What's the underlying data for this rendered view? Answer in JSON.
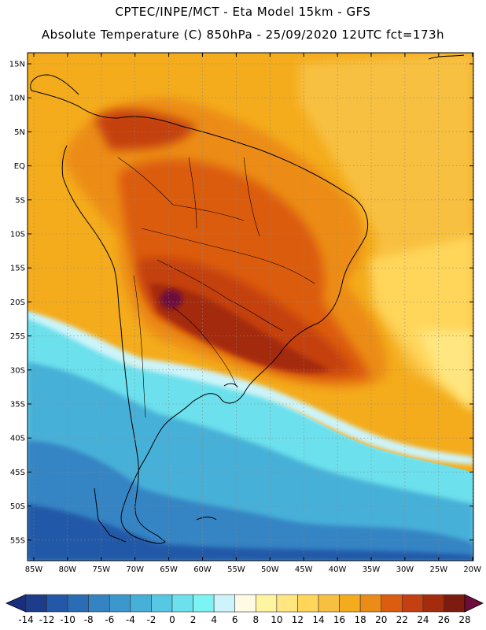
{
  "header": {
    "line1": "CPTEC/INPE/MCT -   Eta Model 15km - GFS",
    "line2": "Absolute Temperature (C) 850hPa - 25/09/2020 12UTC fct=173h"
  },
  "map": {
    "lat_labels": [
      "15N",
      "10N",
      "5N",
      "EQ",
      "5S",
      "10S",
      "15S",
      "20S",
      "25S",
      "30S",
      "35S",
      "40S",
      "45S",
      "50S",
      "55S"
    ],
    "lon_labels": [
      "85W",
      "80W",
      "75W",
      "70W",
      "65W",
      "60W",
      "55W",
      "50W",
      "45W",
      "40W",
      "35W",
      "30W",
      "25W",
      "20W"
    ]
  },
  "colorbar": {
    "labels": [
      "-14",
      "-12",
      "-10",
      "-8",
      "-6",
      "-4",
      "-2",
      "0",
      "2",
      "4",
      "6",
      "8",
      "10",
      "12",
      "14",
      "16",
      "18",
      "20",
      "22",
      "24",
      "26",
      "28"
    ],
    "colors": [
      "#1c3c8c",
      "#2358a8",
      "#2a6cb6",
      "#3484c4",
      "#3c98cc",
      "#46b0d8",
      "#56c8e4",
      "#6ce0ec",
      "#7cf4f4",
      "#ccf4fa",
      "#fffae6",
      "#fff4a0",
      "#ffe680",
      "#ffd65a",
      "#f8c040",
      "#f4ac1c",
      "#ec8c18",
      "#dc5c10",
      "#c44010",
      "#a42c0c",
      "#7c1c10"
    ],
    "under_color": "#1a2e80",
    "over_color": "#6e0c3c"
  }
}
